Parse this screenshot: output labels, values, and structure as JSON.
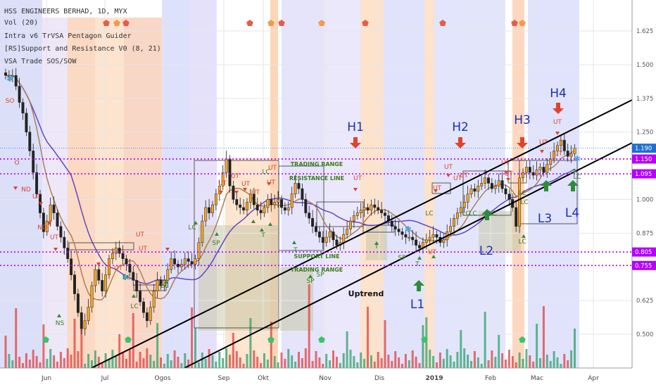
{
  "indicators": {
    "symbol": "HSS ENGINEERS BERHAD, 1D, MYX",
    "vol": "Vol (20)",
    "line2": "Intra v6 TrVSA Pentagon Guider",
    "line3": "[RS]Support and Resistance V0 (8, 21)",
    "line4": "VSA Trade SOS/SOW"
  },
  "colors": {
    "up": "#f7a325",
    "down": "#222222",
    "ma_purple": "#5b3cc4",
    "ma_brown": "#a87a4f",
    "dotted": "#b400ff",
    "price_blue": "#1f6fd1",
    "arrow_red": "#e0432b",
    "arrow_green": "#2e8b3a",
    "label_blue": "#1a2fb0",
    "annot_green": "#3a7d1a",
    "vol_red": "#e04040",
    "vol_green": "#2da06b"
  },
  "chart_data": {
    "type": "candlestick",
    "x_labels": [
      "Jun",
      "Jul",
      "Ogos",
      "Sep",
      "Okt",
      "Nov",
      "Dis",
      "2019",
      "Feb",
      "Mac",
      "Apr"
    ],
    "y_ticks": [
      "1.625",
      "1.500",
      "1.375",
      "1.250",
      "1.000",
      "0.875",
      "0.625",
      "0.500"
    ],
    "ylim": [
      0.44,
      1.69
    ],
    "price_tags": [
      {
        "label": "1.190",
        "value": 1.19,
        "color": "#1f6fd1"
      },
      {
        "label": "1.150",
        "value": 1.15,
        "color": "#b400ff"
      },
      {
        "label": "1.095",
        "value": 1.095,
        "color": "#b400ff"
      },
      {
        "label": "0.805",
        "value": 0.805,
        "color": "#b400ff"
      },
      {
        "label": "0.755",
        "value": 0.755,
        "color": "#b400ff"
      }
    ],
    "closes": [
      1.46,
      1.46,
      1.46,
      1.42,
      1.36,
      1.32,
      1.25,
      1.18,
      1.1,
      1.02,
      0.95,
      0.88,
      0.92,
      0.98,
      0.95,
      0.9,
      0.86,
      0.82,
      0.78,
      0.72,
      0.65,
      0.58,
      0.52,
      0.55,
      0.6,
      0.68,
      0.74,
      0.7,
      0.66,
      0.72,
      0.78,
      0.8,
      0.82,
      0.8,
      0.78,
      0.76,
      0.73,
      0.7,
      0.66,
      0.62,
      0.58,
      0.55,
      0.6,
      0.66,
      0.7,
      0.68,
      0.7,
      0.74,
      0.78,
      0.76,
      0.75,
      0.76,
      0.78,
      0.77,
      0.76,
      0.78,
      0.84,
      0.92,
      0.97,
      0.95,
      0.98,
      1.02,
      1.05,
      1.1,
      1.15,
      1.05,
      1.0,
      0.98,
      0.97,
      0.96,
      0.99,
      1.02,
      0.98,
      0.96,
      0.95,
      0.97,
      1.0,
      0.98,
      0.99,
      1.0,
      0.97,
      0.96,
      0.97,
      1.02,
      1.06,
      1.04,
      1.0,
      0.95,
      0.93,
      0.9,
      0.88,
      0.86,
      0.84,
      0.86,
      0.88,
      0.85,
      0.83,
      0.84,
      0.87,
      0.89,
      0.92,
      0.94,
      0.95,
      0.96,
      0.97,
      0.96,
      0.98,
      0.97,
      0.96,
      0.95,
      0.94,
      0.92,
      0.9,
      0.89,
      0.88,
      0.87,
      0.86,
      0.86,
      0.85,
      0.83,
      0.82,
      0.84,
      0.85,
      0.86,
      0.87,
      0.86,
      0.84,
      0.85,
      0.88,
      0.9,
      0.93,
      0.95,
      0.97,
      0.99,
      1.02,
      1.04,
      1.03,
      1.05,
      1.06,
      1.08,
      1.06,
      1.04,
      1.05,
      1.07,
      1.04,
      1.02,
      1.0,
      0.97,
      0.9,
      1.08,
      1.1,
      1.12,
      1.1,
      1.09,
      1.11,
      1.12,
      1.1,
      1.13,
      1.15,
      1.18,
      1.2,
      1.22,
      1.18,
      1.16,
      1.17,
      1.19
    ],
    "annotations": {
      "levels": [
        "H1",
        "H2",
        "H3",
        "H4",
        "L1",
        "L2",
        "L3",
        "L4"
      ],
      "texts": [
        "TRADING RANGE",
        "RESISTANCE LINE",
        "SUPPORT LINE",
        "TRADING RANGE",
        "Uptrend"
      ],
      "small": [
        "SO",
        "O",
        "ND",
        "UT",
        "ND",
        "UT",
        "NS",
        "LC",
        "SP",
        "UT",
        "T",
        "LC",
        "UT",
        "UT",
        "UT",
        "UT",
        "UT",
        "SP",
        "SP",
        "T",
        "LC",
        "LC",
        "UT",
        "UT",
        "UT",
        "LC",
        "T",
        "UT",
        "UT",
        "UT",
        "UT",
        "UT",
        "UT",
        "UT",
        "UT",
        "LC",
        "LC",
        "UT",
        "LC",
        "SP",
        "T",
        "UT",
        "LC",
        "LC",
        "LC",
        "LC",
        "UT",
        "LC"
      ]
    }
  }
}
